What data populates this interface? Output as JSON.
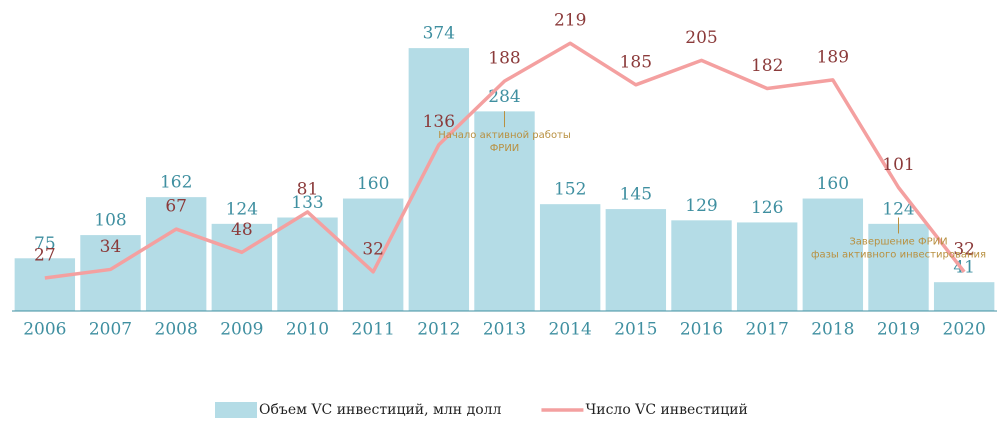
{
  "chart_data": {
    "type": "bar",
    "categories": [
      "2006",
      "2007",
      "2008",
      "2009",
      "2010",
      "2011",
      "2012",
      "2013",
      "2014",
      "2015",
      "2016",
      "2017",
      "2018",
      "2019",
      "2020"
    ],
    "series": [
      {
        "name": "Объем VC инвестиций, млн долл",
        "type": "bar",
        "color": "#b4dce6",
        "values": [
          75,
          108,
          162,
          124,
          133,
          160,
          374,
          284,
          152,
          145,
          129,
          126,
          160,
          124,
          41
        ]
      },
      {
        "name": "Число VC инвестиций",
        "type": "line",
        "axis": "y2",
        "color": "#f4a0a0",
        "values": [
          27,
          34,
          67,
          48,
          81,
          32,
          136,
          188,
          219,
          185,
          205,
          182,
          189,
          101,
          32
        ]
      }
    ],
    "ylim": [
      0,
      414
    ],
    "y2lim": [
      0,
      238
    ],
    "annotations": [
      {
        "x": "2013",
        "lines": [
          "Начало активной работы",
          "ФРИИ"
        ]
      },
      {
        "x": "2019",
        "lines": [
          "Завершение ФРИИ",
          "фазы активного инвестирования"
        ]
      }
    ],
    "legend": "bottom"
  }
}
